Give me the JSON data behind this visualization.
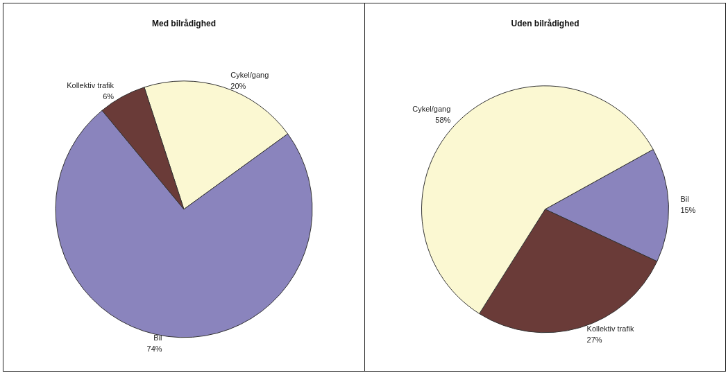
{
  "chart_data": [
    {
      "type": "pie",
      "title": "Med bilrådighed",
      "categories": [
        "Cykel/gang",
        "Bil",
        "Kollektiv trafik"
      ],
      "values": [
        20,
        74,
        6
      ],
      "value_labels": [
        "20%",
        "74%",
        "6%"
      ],
      "colors": [
        "#fbf8d2",
        "#8a84bd",
        "#6a3b38"
      ],
      "data_labels": true
    },
    {
      "type": "pie",
      "title": "Uden bilrådighed",
      "categories": [
        "Bil",
        "Kollektiv trafik",
        "Cykel/gang"
      ],
      "values": [
        15,
        27,
        58
      ],
      "value_labels": [
        "15%",
        "27%",
        "58%"
      ],
      "colors": [
        "#8a84bd",
        "#6a3b38",
        "#fbf8d2"
      ],
      "data_labels": true
    }
  ]
}
